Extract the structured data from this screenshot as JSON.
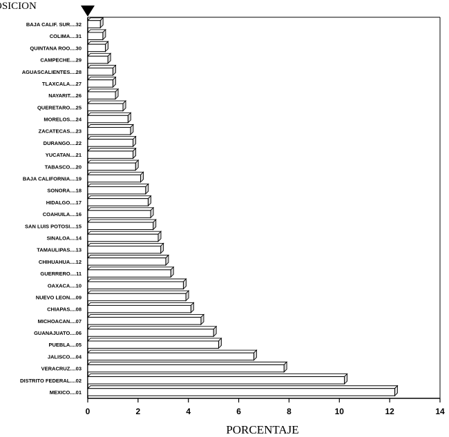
{
  "chart_data": {
    "type": "bar",
    "orientation": "horizontal",
    "title": "OSICION",
    "xlabel": "PORCENTAJE",
    "ylabel": "",
    "xlim": [
      0,
      14
    ],
    "xticks": [
      "0",
      "2",
      "4",
      "6",
      "8",
      "10",
      "12",
      "14"
    ],
    "grid": false,
    "legend": "none",
    "bar_style": "3d",
    "colors": {
      "bar_fill": "#ffffff",
      "bar_stroke": "#000000",
      "background": "#ffffff"
    },
    "marker": "down-triangle-icon",
    "categories": [
      "BAJA CALIF. SUR....32",
      "COLIMA....31",
      "QUINTANA ROO....30",
      "CAMPECHE....29",
      "AGUASCALIENTES....28",
      "TLAXCALA....27",
      "NAYARIT....26",
      "QUERETARO....25",
      "MORELOS....24",
      "ZACATECAS....23",
      "DURANGO....22",
      "YUCATAN....21",
      "TABASCO....20",
      "BAJA CALIFORNIA....19",
      "SONORA....18",
      "HIDALGO....17",
      "COAHUILA....16",
      "SAN LUIS POTOSI....15",
      "SINALOA....14",
      "TAMAULIPAS....13",
      "CHIHUAHUA....12",
      "GUERRERO....11",
      "OAXACA....10",
      "NUEVO LEON....09",
      "CHIAPAS....08",
      "MICHOACAN....07",
      "GUANAJUATO....06",
      "PUEBLA....05",
      "JALISCO....04",
      "VERACRUZ....03",
      "DISTRITO FEDERAL....02",
      "MEXICO....01"
    ],
    "values": [
      0.5,
      0.6,
      0.7,
      0.8,
      1.0,
      1.0,
      1.1,
      1.4,
      1.6,
      1.7,
      1.8,
      1.8,
      1.9,
      2.1,
      2.3,
      2.4,
      2.5,
      2.6,
      2.8,
      2.9,
      3.1,
      3.3,
      3.8,
      3.9,
      4.1,
      4.5,
      5.0,
      5.2,
      6.6,
      7.8,
      10.2,
      12.2
    ]
  }
}
